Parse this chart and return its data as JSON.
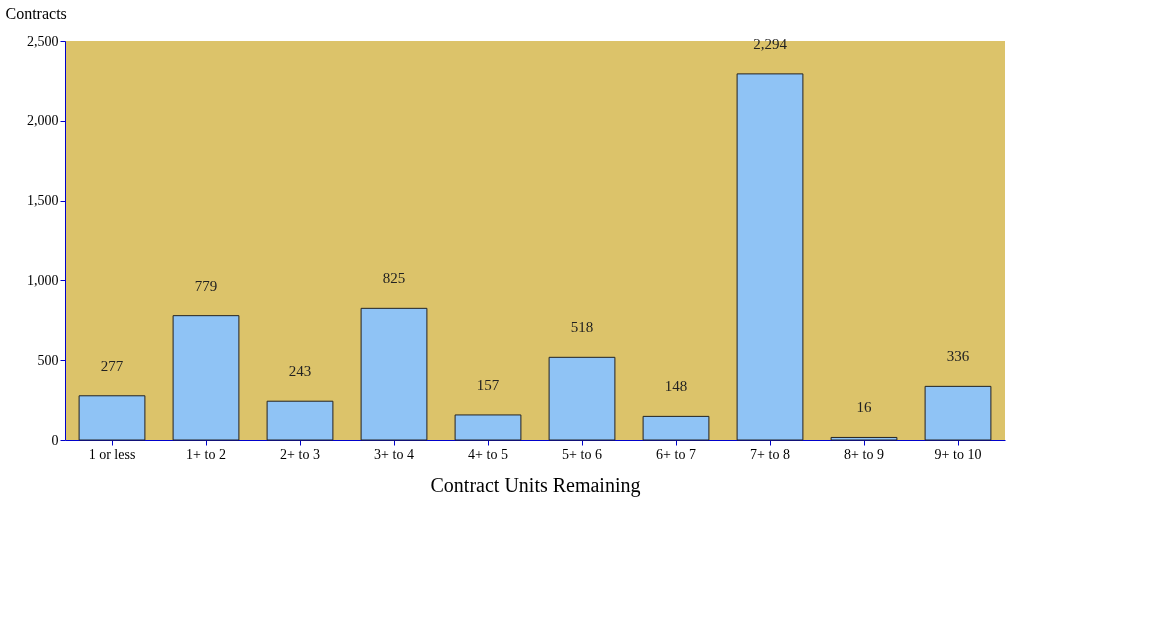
{
  "chart_data": {
    "type": "bar",
    "xlabel": "Contract Units Remaining",
    "ylabel": "Contracts",
    "categories": [
      "1 or less",
      "1+ to 2",
      "2+ to 3",
      "3+ to 4",
      "4+ to 5",
      "5+ to 6",
      "6+ to 7",
      "7+ to 8",
      "8+ to 9",
      "9+ to 10"
    ],
    "values": [
      277,
      779,
      243,
      825,
      157,
      518,
      148,
      2294,
      16,
      336
    ],
    "value_labels": [
      "277",
      "779",
      "243",
      "825",
      "157",
      "518",
      "148",
      "2,294",
      "16",
      "336"
    ],
    "color": "#8fc3f5",
    "ylim": [
      0,
      2500
    ],
    "yticks": [
      {
        "value": 0,
        "label": "0"
      },
      {
        "value": 500,
        "label": "500"
      },
      {
        "value": 1000,
        "label": "1,000"
      },
      {
        "value": 1500,
        "label": "1,500"
      },
      {
        "value": 2000,
        "label": "2,000"
      },
      {
        "value": 2500,
        "label": "2,500"
      }
    ],
    "grid": false
  }
}
